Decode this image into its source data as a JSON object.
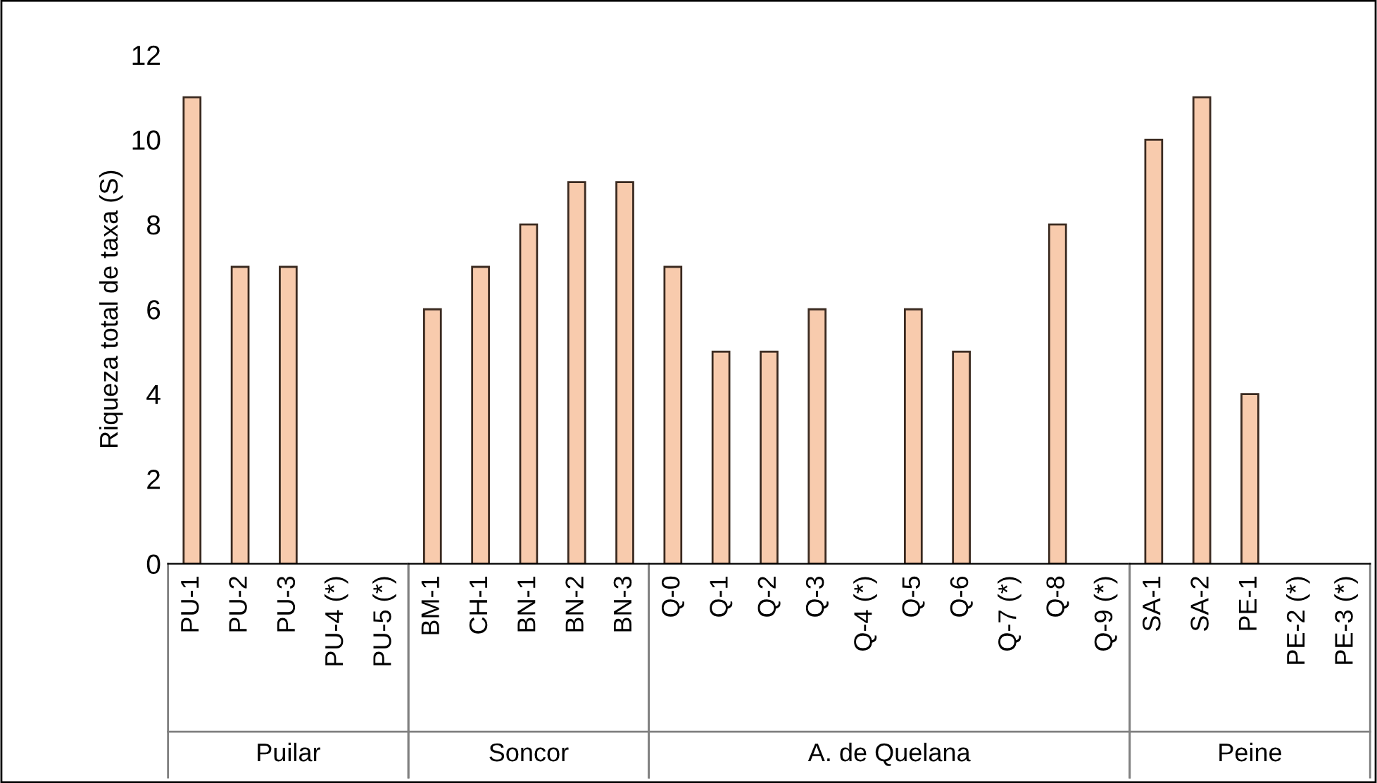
{
  "chart_data": [
    {
      "type": "bar",
      "ylabel": "Riqueza total de taxa (S)",
      "xlabel": "Puilar",
      "categories": [
        "PU-1",
        "PU-2",
        "PU-3",
        "PU-4 (*)",
        "PU-5 (*)"
      ],
      "values": [
        11,
        7,
        7,
        null,
        null
      ],
      "color": "#f8cbad",
      "ylim": [
        0,
        12
      ],
      "yticks": [
        0,
        2,
        4,
        6,
        8,
        10,
        12
      ],
      "grid": false
    },
    {
      "type": "bar",
      "xlabel": "Soncor",
      "categories": [
        "BM-1",
        "CH-1",
        "BN-1",
        "BN-2",
        "BN-3"
      ],
      "values": [
        6,
        7,
        8,
        9,
        9
      ],
      "color": "#f8cbad",
      "ylim": [
        0,
        12
      ],
      "tick_labels": "x",
      "grid": false
    },
    {
      "type": "bar",
      "xlabel": "A. de Quelana",
      "categories": [
        "Q-0",
        "Q-1",
        "Q-2",
        "Q-3",
        "Q-4 (*)",
        "Q-5",
        "Q-6",
        "Q-7 (*)",
        "Q-8",
        "Q-9 (*)"
      ],
      "values": [
        7,
        5,
        5,
        6,
        null,
        6,
        5,
        null,
        8,
        null
      ],
      "color": "#f8cbad",
      "ylim": [
        0,
        12
      ],
      "tick_labels": "x",
      "grid": false
    },
    {
      "type": "bar",
      "xlabel": "Peine",
      "categories": [
        "SA-1",
        "SA-2",
        "PE-1",
        "PE-2 (*)",
        "PE-3 (*)"
      ],
      "values": [
        10,
        11,
        4,
        null,
        null
      ],
      "color": "#f8cbad",
      "ylim": [
        0,
        12
      ],
      "tick_labels": "x",
      "grid": false
    }
  ]
}
